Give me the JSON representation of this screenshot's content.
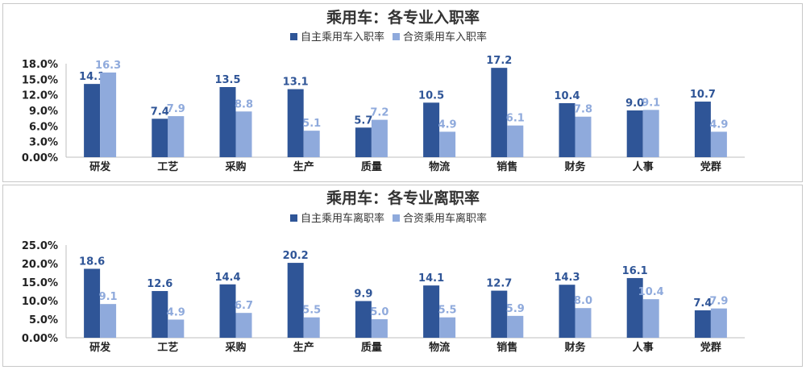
{
  "chart_data": [
    {
      "type": "bar",
      "title": "乘用车：各专业入职率",
      "categories": [
        "研发",
        "工艺",
        "采购",
        "生产",
        "质量",
        "物流",
        "销售",
        "财务",
        "人事",
        "党群"
      ],
      "series": [
        {
          "name": "自主乘用车入职率",
          "color": "#2f5597",
          "values": [
            14.1,
            7.4,
            13.5,
            13.1,
            5.7,
            10.5,
            17.2,
            10.4,
            9.0,
            10.7
          ]
        },
        {
          "name": "合资乘用车入职率",
          "color": "#8faadc",
          "values": [
            16.3,
            7.9,
            8.8,
            5.1,
            7.2,
            4.9,
            6.1,
            7.8,
            9.1,
            4.9
          ]
        }
      ],
      "yticks": [
        "0.00%",
        "3.0%",
        "6.0%",
        "9.0%",
        "12.0%",
        "15.0%",
        "18.0%"
      ],
      "ylim": [
        0,
        18
      ],
      "legend": "top"
    },
    {
      "type": "bar",
      "title": "乘用车：各专业离职率",
      "categories": [
        "研发",
        "工艺",
        "采购",
        "生产",
        "质量",
        "物流",
        "销售",
        "财务",
        "人事",
        "党群"
      ],
      "series": [
        {
          "name": "自主乘用车离职率",
          "color": "#2f5597",
          "values": [
            18.6,
            12.6,
            14.4,
            20.2,
            9.9,
            14.1,
            12.7,
            14.3,
            16.1,
            7.4
          ]
        },
        {
          "name": "合资乘用车离职率",
          "color": "#8faadc",
          "values": [
            9.1,
            4.9,
            6.7,
            5.5,
            5.0,
            5.5,
            5.9,
            8.0,
            10.4,
            7.9
          ]
        }
      ],
      "yticks": [
        "0.00%",
        "5.0%",
        "10.0%",
        "15.0%",
        "20.0%",
        "25.0%"
      ],
      "ylim": [
        0,
        25
      ],
      "legend": "top"
    }
  ]
}
